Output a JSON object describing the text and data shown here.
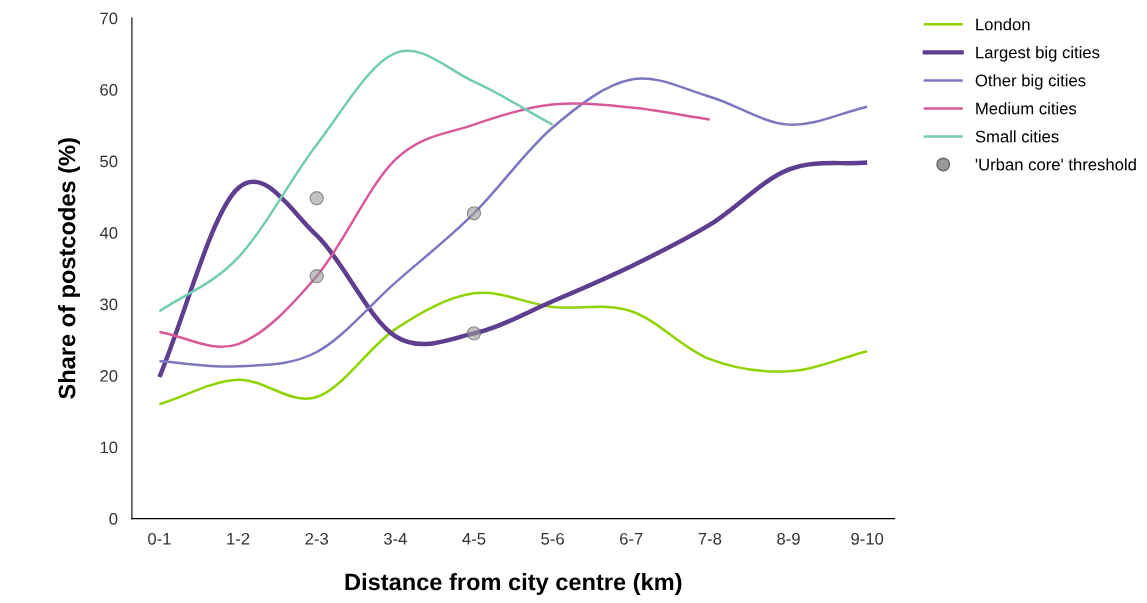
{
  "chart_data": {
    "type": "line",
    "xlabel": "Distance from city centre (km)",
    "ylabel": "Share of postcodes (%)",
    "categories": [
      "0-1",
      "1-2",
      "2-3",
      "3-4",
      "4-5",
      "5-6",
      "6-7",
      "7-8",
      "8-9",
      "9-10"
    ],
    "ylim": [
      0,
      70
    ],
    "yticks": [
      0,
      10,
      20,
      30,
      40,
      50,
      60,
      70
    ],
    "grid": false,
    "legend": "top right",
    "series": [
      {
        "name": "London",
        "color": "#8fd400",
        "values": [
          16.0,
          19.4,
          17.0,
          26.5,
          31.5,
          29.6,
          29.0,
          22.3,
          20.6,
          23.4
        ]
      },
      {
        "name": "Largest big cities",
        "color": "#5f3d8f",
        "values": [
          19.8,
          46.2,
          39.6,
          25.5,
          25.9,
          30.4,
          35.3,
          41.1,
          48.8,
          49.8
        ]
      },
      {
        "name": "Other big cities",
        "color": "#7b78c0",
        "values": [
          22.0,
          21.3,
          23.3,
          33.0,
          42.7,
          54.7,
          61.4,
          59.0,
          55.1,
          57.6
        ]
      },
      {
        "name": "Medium cities",
        "color": "#d9589a",
        "values": [
          26.1,
          24.4,
          33.9,
          50.2,
          55.1,
          57.9,
          57.5,
          55.8,
          null,
          null
        ]
      },
      {
        "name": "Small cities",
        "color": "#74cdb0",
        "values": [
          29.0,
          36.5,
          52.3,
          65.1,
          61.1,
          55.1,
          null,
          null,
          null,
          null
        ]
      },
      {
        "name": "'Urban core' threshold",
        "type": "scatter",
        "marker": "circle",
        "color": "#999999",
        "x": [
          "2-3",
          "4-5",
          "4-5",
          "2-3"
        ],
        "values": [
          44.8,
          25.9,
          42.7,
          33.9
        ]
      }
    ]
  }
}
